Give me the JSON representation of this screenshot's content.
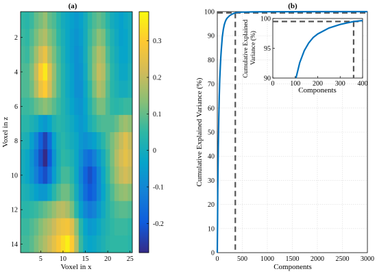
{
  "chart_data": [
    {
      "type": "heatmap",
      "title": "(a)",
      "xlabel": "Voxel in x",
      "ylabel": "Voxel in z",
      "xlim": [
        0.5,
        25.5
      ],
      "ylim": [
        0.5,
        14.5
      ],
      "xticks": [
        "5",
        "10",
        "15",
        "20",
        "25"
      ],
      "yticks": [
        "2",
        "4",
        "6",
        "8",
        "10",
        "12",
        "14"
      ],
      "colorbar": {
        "range": [
          -0.28,
          0.38
        ],
        "ticks": [
          "0.3",
          "0.2",
          "0.1",
          "0",
          "-0.1",
          "-0.2"
        ],
        "tick_values": [
          0.3,
          0.2,
          0.1,
          0,
          -0.1,
          -0.2
        ],
        "colormap": "parula"
      },
      "values": [
        [
          0.05,
          0.04,
          0.06,
          0.1,
          0.12,
          0.15,
          0.1,
          0.08,
          0.04,
          0.0,
          -0.02,
          -0.04,
          -0.06,
          -0.04,
          0.0,
          0.05,
          0.08,
          0.1,
          0.08,
          0.04,
          0.0,
          -0.02,
          -0.04,
          -0.02,
          0.0
        ],
        [
          0.06,
          0.05,
          0.08,
          0.12,
          0.16,
          0.18,
          0.13,
          0.1,
          0.05,
          0.01,
          -0.02,
          -0.05,
          -0.07,
          -0.05,
          0.0,
          0.06,
          0.1,
          0.14,
          0.12,
          0.06,
          0.02,
          -0.01,
          -0.04,
          -0.03,
          0.0
        ],
        [
          0.07,
          0.06,
          0.1,
          0.16,
          0.22,
          0.26,
          0.18,
          0.12,
          0.07,
          0.02,
          -0.02,
          -0.05,
          -0.08,
          -0.06,
          0.0,
          0.07,
          0.13,
          0.18,
          0.16,
          0.08,
          0.03,
          0.0,
          -0.03,
          -0.03,
          0.0
        ],
        [
          0.08,
          0.08,
          0.12,
          0.2,
          0.3,
          0.35,
          0.24,
          0.15,
          0.08,
          0.03,
          -0.01,
          -0.04,
          -0.08,
          -0.07,
          -0.01,
          0.07,
          0.14,
          0.2,
          0.18,
          0.1,
          0.04,
          0.01,
          -0.02,
          -0.02,
          0.01
        ],
        [
          0.08,
          0.08,
          0.11,
          0.18,
          0.26,
          0.3,
          0.22,
          0.14,
          0.08,
          0.03,
          -0.01,
          -0.04,
          -0.08,
          -0.08,
          -0.02,
          0.05,
          0.12,
          0.18,
          0.16,
          0.09,
          0.04,
          0.02,
          0.0,
          0.0,
          0.02
        ],
        [
          0.06,
          0.06,
          0.07,
          0.1,
          0.12,
          0.14,
          0.12,
          0.09,
          0.06,
          0.03,
          0.0,
          -0.03,
          -0.06,
          -0.07,
          -0.03,
          0.03,
          0.08,
          0.12,
          0.12,
          0.08,
          0.05,
          0.04,
          0.05,
          0.06,
          0.06
        ],
        [
          0.04,
          0.04,
          0.02,
          0.0,
          -0.04,
          -0.06,
          -0.03,
          0.02,
          0.04,
          0.03,
          0.01,
          -0.01,
          -0.04,
          -0.06,
          -0.04,
          0.01,
          0.04,
          0.07,
          0.08,
          0.08,
          0.08,
          0.1,
          0.14,
          0.16,
          0.14
        ],
        [
          0.02,
          0.01,
          -0.04,
          -0.1,
          -0.18,
          -0.24,
          -0.16,
          -0.04,
          0.02,
          0.04,
          0.02,
          0.0,
          -0.02,
          -0.06,
          -0.08,
          -0.06,
          -0.04,
          0.0,
          0.04,
          0.08,
          0.12,
          0.16,
          0.2,
          0.24,
          0.2
        ],
        [
          0.0,
          -0.02,
          -0.07,
          -0.14,
          -0.22,
          -0.28,
          -0.2,
          -0.07,
          0.01,
          0.05,
          0.04,
          0.02,
          -0.02,
          -0.08,
          -0.14,
          -0.16,
          -0.12,
          -0.06,
          0.0,
          0.06,
          0.12,
          0.18,
          0.22,
          0.25,
          0.22
        ],
        [
          0.0,
          -0.02,
          -0.06,
          -0.12,
          -0.18,
          -0.22,
          -0.15,
          -0.05,
          0.02,
          0.07,
          0.07,
          0.04,
          -0.02,
          -0.1,
          -0.18,
          -0.22,
          -0.18,
          -0.1,
          -0.02,
          0.05,
          0.11,
          0.16,
          0.2,
          0.22,
          0.2
        ],
        [
          0.02,
          0.01,
          -0.01,
          -0.04,
          -0.06,
          -0.06,
          -0.02,
          0.04,
          0.08,
          0.11,
          0.11,
          0.07,
          0.0,
          -0.08,
          -0.16,
          -0.2,
          -0.17,
          -0.1,
          -0.03,
          0.03,
          0.08,
          0.12,
          0.14,
          0.15,
          0.13
        ],
        [
          0.04,
          0.04,
          0.05,
          0.06,
          0.08,
          0.1,
          0.12,
          0.15,
          0.18,
          0.19,
          0.17,
          0.12,
          0.04,
          -0.04,
          -0.1,
          -0.13,
          -0.11,
          -0.06,
          -0.01,
          0.03,
          0.06,
          0.08,
          0.09,
          0.09,
          0.08
        ],
        [
          0.06,
          0.06,
          0.08,
          0.1,
          0.13,
          0.16,
          0.18,
          0.21,
          0.25,
          0.27,
          0.28,
          0.24,
          0.14,
          0.04,
          -0.03,
          -0.06,
          -0.05,
          -0.02,
          0.01,
          0.03,
          0.05,
          0.06,
          0.06,
          0.06,
          0.05
        ],
        [
          0.07,
          0.07,
          0.09,
          0.12,
          0.15,
          0.18,
          0.21,
          0.25,
          0.29,
          0.33,
          0.36,
          0.3,
          0.18,
          0.06,
          -0.01,
          -0.03,
          -0.02,
          0.0,
          0.02,
          0.04,
          0.05,
          0.05,
          0.05,
          0.05,
          0.04
        ]
      ]
    },
    {
      "type": "line",
      "title": "(b)",
      "xlabel": "Components",
      "ylabel": "Cumulative Explained Variance (%)",
      "xlim": [
        0,
        3000
      ],
      "ylim": [
        0,
        100
      ],
      "xticks": [
        "0",
        "500",
        "1000",
        "1500",
        "2000",
        "2500",
        "3000"
      ],
      "yticks": [
        "0",
        "10",
        "20",
        "30",
        "40",
        "50",
        "60",
        "70",
        "80",
        "90",
        "100"
      ],
      "grid": true,
      "series": [
        {
          "x": [
            0,
            2,
            5,
            10,
            20,
            30,
            40,
            50,
            60,
            70,
            80,
            100,
            120,
            140,
            160,
            180,
            200,
            250,
            300,
            360,
            400,
            500,
            700,
            1000,
            1500,
            2000,
            2500,
            3000
          ],
          "y": [
            0,
            3.5,
            12,
            26,
            44,
            56,
            65,
            72,
            77,
            81,
            84,
            89.5,
            92.6,
            94.6,
            95.9,
            96.8,
            97.4,
            98.4,
            99.0,
            99.5,
            99.65,
            99.8,
            99.9,
            99.95,
            99.98,
            99.99,
            100,
            100
          ]
        }
      ],
      "reference_lines": {
        "x": 360,
        "y": 99.5
      },
      "inset": {
        "xlabel": "Components",
        "ylabel": "Cumulative Explained Variance (%)",
        "xlim": [
          0,
          400
        ],
        "ylim": [
          90,
          100
        ],
        "xticks": [
          "0",
          "100",
          "200",
          "300",
          "400"
        ],
        "yticks": [
          "90",
          "95",
          "100"
        ]
      }
    }
  ]
}
